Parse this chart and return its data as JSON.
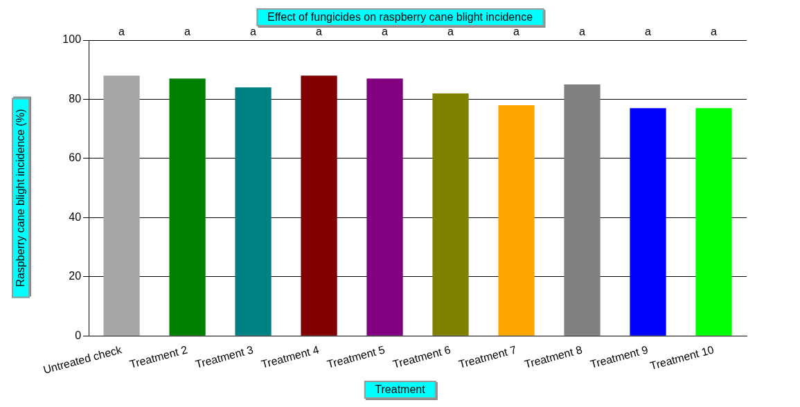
{
  "chart_data": {
    "type": "bar",
    "title": "Effect of fungicides on raspberry cane blight incidence",
    "xlabel": "Treatment",
    "ylabel": "Raspberry cane blight incidence (%)",
    "categories": [
      "Untreated check",
      "Treatment 2",
      "Treatment 3",
      "Treatment 4",
      "Treatment 5",
      "Treatment 6",
      "Treatment 7",
      "Treatment 8",
      "Treatment 9",
      "Treatment 10"
    ],
    "values": [
      88,
      87,
      84,
      88,
      87,
      82,
      78,
      85,
      77,
      77
    ],
    "colors": [
      "#a6a6a6",
      "#008000",
      "#008080",
      "#800000",
      "#800080",
      "#808000",
      "#ffa500",
      "#808080",
      "#0000ff",
      "#00ff00"
    ],
    "ylim": [
      0,
      100
    ],
    "yticks": [
      0,
      20,
      40,
      60,
      80,
      100
    ],
    "grid": "y",
    "legend": false,
    "annotations": [
      "a",
      "a",
      "a",
      "a",
      "a",
      "a",
      "a",
      "a",
      "a",
      "a"
    ]
  }
}
